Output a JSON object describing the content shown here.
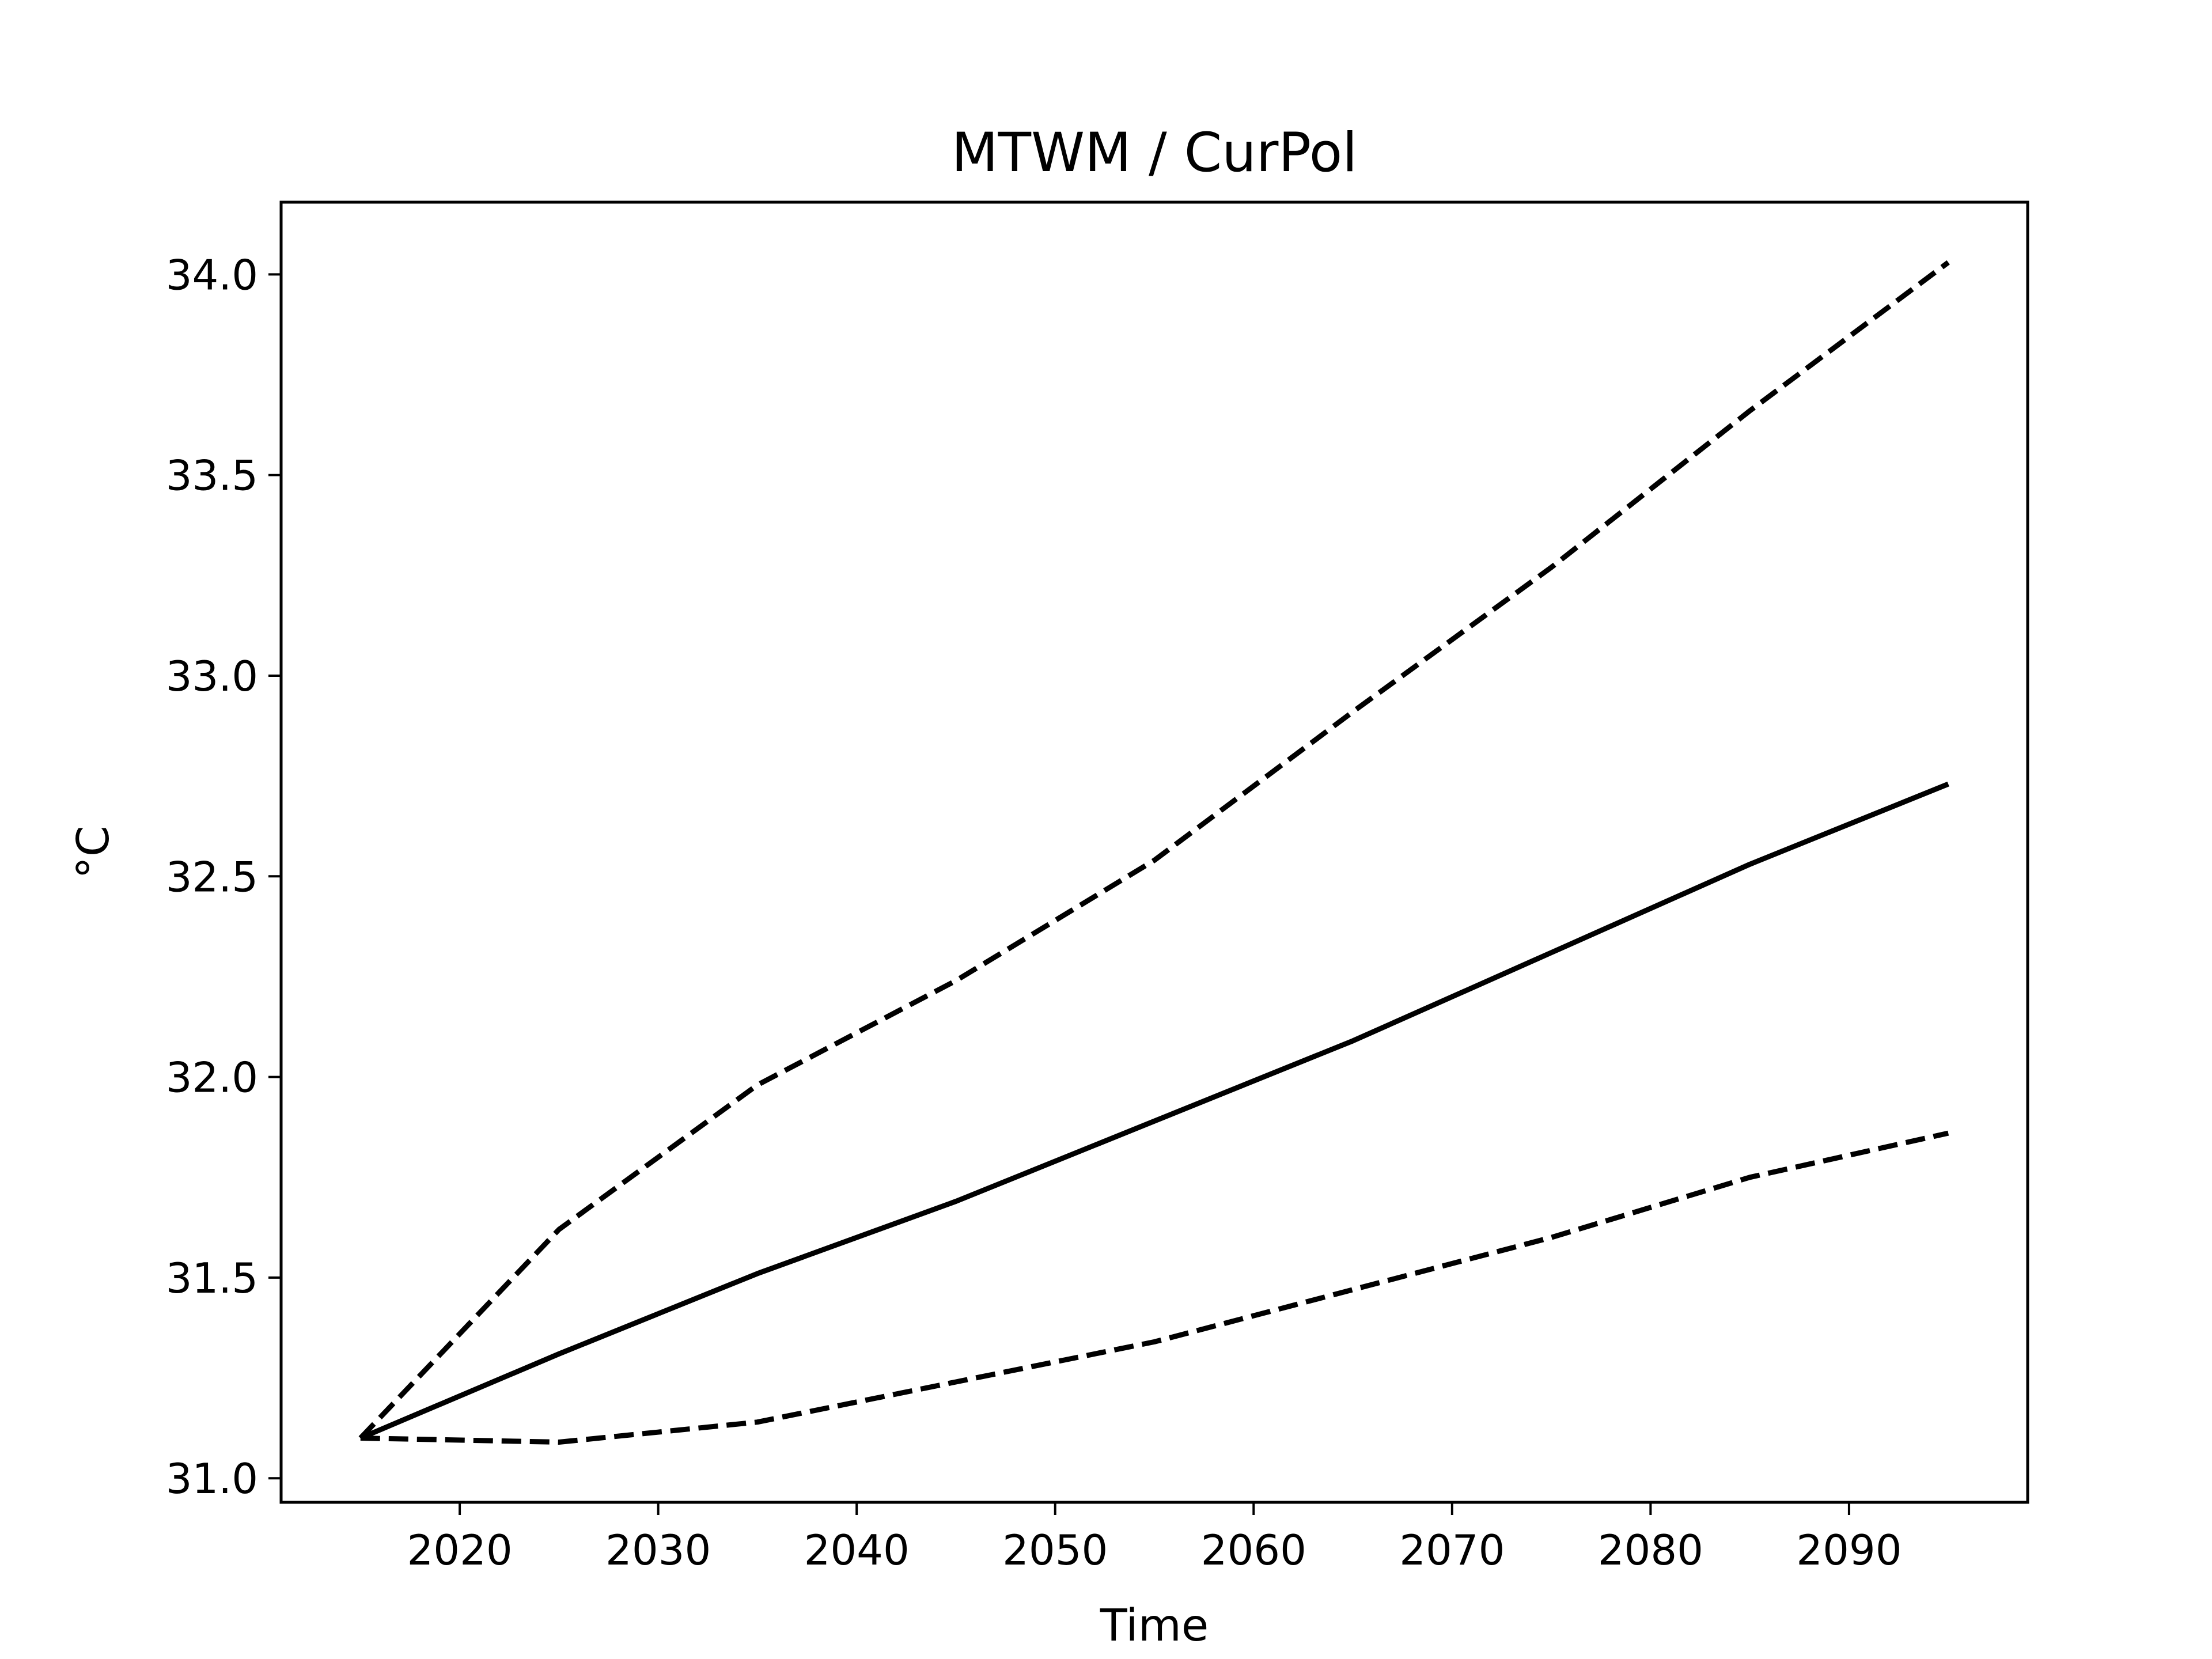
{
  "chart_data": {
    "type": "line",
    "title": "MTWM / CurPol",
    "xlabel": "Time",
    "ylabel": "°C",
    "xlim": [
      2011,
      2099
    ],
    "ylim": [
      30.94,
      34.18
    ],
    "xticks": [
      2020,
      2030,
      2040,
      2050,
      2060,
      2070,
      2080,
      2090
    ],
    "yticks": [
      31.0,
      31.5,
      32.0,
      32.5,
      33.0,
      33.5,
      34.0
    ],
    "ytick_labels": [
      "31.0",
      "31.5",
      "32.0",
      "32.5",
      "33.0",
      "33.5",
      "34.0"
    ],
    "grid": false,
    "legend": "none",
    "x": [
      2015,
      2025,
      2035,
      2045,
      2055,
      2065,
      2075,
      2085,
      2095
    ],
    "series": [
      {
        "style": "solid",
        "color": "#000000",
        "values": [
          31.1,
          31.31,
          31.51,
          31.69,
          31.89,
          32.09,
          32.31,
          32.53,
          32.73
        ]
      },
      {
        "style": "dashed",
        "color": "#000000",
        "values": [
          31.1,
          31.62,
          31.98,
          32.24,
          32.54,
          32.91,
          33.27,
          33.66,
          34.03
        ]
      },
      {
        "style": "dashed",
        "color": "#000000",
        "values": [
          31.1,
          31.09,
          31.14,
          31.24,
          31.34,
          31.47,
          31.6,
          31.75,
          31.86
        ]
      }
    ]
  }
}
